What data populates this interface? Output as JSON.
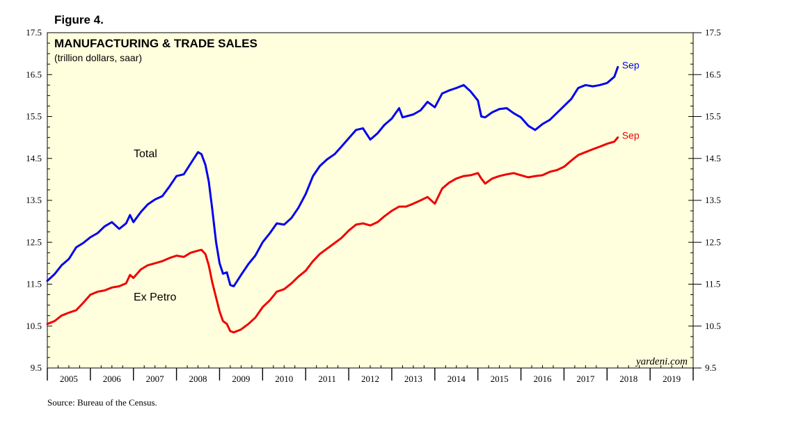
{
  "figure_label": "Figure 4.",
  "source": "Source: Bureau of the Census.",
  "watermark": "yardeni.com",
  "chart_data": {
    "type": "line",
    "title": "MANUFACTURING & TRADE SALES",
    "subtitle": "(trillion dollars, saar)",
    "xlim": [
      2005.0,
      2020.0
    ],
    "ylim": [
      9.5,
      17.5
    ],
    "y_ticks": [
      9.5,
      10.5,
      11.5,
      12.5,
      13.5,
      14.5,
      15.5,
      16.5,
      17.5
    ],
    "y_tick_labels": [
      "9.5",
      "10.5",
      "11.5",
      "12.5",
      "13.5",
      "14.5",
      "15.5",
      "16.5",
      "17.5"
    ],
    "x_labels": [
      "2005",
      "2006",
      "2007",
      "2008",
      "2009",
      "2010",
      "2011",
      "2012",
      "2013",
      "2014",
      "2015",
      "2016",
      "2017",
      "2018",
      "2019"
    ],
    "grid": false,
    "background": "#ffffdd",
    "series": [
      {
        "name": "Total",
        "color": "#0000ee",
        "end_label": "Sep",
        "points": [
          [
            2005.0,
            11.58
          ],
          [
            2005.17,
            11.74
          ],
          [
            2005.33,
            11.95
          ],
          [
            2005.5,
            12.1
          ],
          [
            2005.67,
            12.38
          ],
          [
            2005.83,
            12.48
          ],
          [
            2006.0,
            12.62
          ],
          [
            2006.17,
            12.72
          ],
          [
            2006.33,
            12.88
          ],
          [
            2006.5,
            12.98
          ],
          [
            2006.67,
            12.82
          ],
          [
            2006.83,
            12.95
          ],
          [
            2006.92,
            13.15
          ],
          [
            2007.0,
            12.98
          ],
          [
            2007.17,
            13.22
          ],
          [
            2007.33,
            13.4
          ],
          [
            2007.5,
            13.52
          ],
          [
            2007.67,
            13.6
          ],
          [
            2007.83,
            13.82
          ],
          [
            2008.0,
            14.08
          ],
          [
            2008.17,
            14.12
          ],
          [
            2008.33,
            14.38
          ],
          [
            2008.5,
            14.65
          ],
          [
            2008.58,
            14.6
          ],
          [
            2008.67,
            14.35
          ],
          [
            2008.75,
            13.95
          ],
          [
            2008.83,
            13.3
          ],
          [
            2008.92,
            12.5
          ],
          [
            2009.0,
            12.0
          ],
          [
            2009.08,
            11.75
          ],
          [
            2009.17,
            11.78
          ],
          [
            2009.25,
            11.48
          ],
          [
            2009.33,
            11.45
          ],
          [
            2009.5,
            11.72
          ],
          [
            2009.67,
            11.98
          ],
          [
            2009.83,
            12.18
          ],
          [
            2010.0,
            12.5
          ],
          [
            2010.17,
            12.72
          ],
          [
            2010.33,
            12.95
          ],
          [
            2010.5,
            12.92
          ],
          [
            2010.67,
            13.08
          ],
          [
            2010.83,
            13.32
          ],
          [
            2011.0,
            13.65
          ],
          [
            2011.17,
            14.08
          ],
          [
            2011.33,
            14.32
          ],
          [
            2011.5,
            14.48
          ],
          [
            2011.67,
            14.6
          ],
          [
            2011.83,
            14.78
          ],
          [
            2012.0,
            14.98
          ],
          [
            2012.17,
            15.18
          ],
          [
            2012.33,
            15.22
          ],
          [
            2012.5,
            14.95
          ],
          [
            2012.67,
            15.1
          ],
          [
            2012.83,
            15.3
          ],
          [
            2013.0,
            15.45
          ],
          [
            2013.17,
            15.7
          ],
          [
            2013.25,
            15.48
          ],
          [
            2013.5,
            15.55
          ],
          [
            2013.67,
            15.65
          ],
          [
            2013.83,
            15.85
          ],
          [
            2014.0,
            15.72
          ],
          [
            2014.17,
            16.05
          ],
          [
            2014.33,
            16.12
          ],
          [
            2014.5,
            16.18
          ],
          [
            2014.67,
            16.25
          ],
          [
            2014.83,
            16.1
          ],
          [
            2015.0,
            15.88
          ],
          [
            2015.08,
            15.5
          ],
          [
            2015.17,
            15.48
          ],
          [
            2015.33,
            15.6
          ],
          [
            2015.5,
            15.68
          ],
          [
            2015.67,
            15.7
          ],
          [
            2015.83,
            15.58
          ],
          [
            2016.0,
            15.48
          ],
          [
            2016.17,
            15.28
          ],
          [
            2016.33,
            15.18
          ],
          [
            2016.5,
            15.32
          ],
          [
            2016.67,
            15.42
          ],
          [
            2016.83,
            15.58
          ],
          [
            2017.0,
            15.75
          ],
          [
            2017.17,
            15.92
          ],
          [
            2017.33,
            16.18
          ],
          [
            2017.5,
            16.25
          ],
          [
            2017.67,
            16.22
          ],
          [
            2017.83,
            16.25
          ],
          [
            2018.0,
            16.3
          ],
          [
            2018.17,
            16.45
          ],
          [
            2018.25,
            16.68
          ]
        ]
      },
      {
        "name": "Ex Petro",
        "color": "#ee0000",
        "end_label": "Sep",
        "points": [
          [
            2005.0,
            10.55
          ],
          [
            2005.17,
            10.62
          ],
          [
            2005.33,
            10.75
          ],
          [
            2005.5,
            10.82
          ],
          [
            2005.67,
            10.88
          ],
          [
            2005.83,
            11.05
          ],
          [
            2006.0,
            11.25
          ],
          [
            2006.17,
            11.32
          ],
          [
            2006.33,
            11.35
          ],
          [
            2006.5,
            11.42
          ],
          [
            2006.67,
            11.45
          ],
          [
            2006.83,
            11.52
          ],
          [
            2006.92,
            11.72
          ],
          [
            2007.0,
            11.65
          ],
          [
            2007.17,
            11.85
          ],
          [
            2007.33,
            11.95
          ],
          [
            2007.5,
            12.0
          ],
          [
            2007.67,
            12.05
          ],
          [
            2007.83,
            12.12
          ],
          [
            2008.0,
            12.18
          ],
          [
            2008.17,
            12.15
          ],
          [
            2008.33,
            12.25
          ],
          [
            2008.5,
            12.3
          ],
          [
            2008.58,
            12.32
          ],
          [
            2008.67,
            12.22
          ],
          [
            2008.75,
            11.95
          ],
          [
            2008.83,
            11.55
          ],
          [
            2008.92,
            11.18
          ],
          [
            2009.0,
            10.85
          ],
          [
            2009.08,
            10.62
          ],
          [
            2009.17,
            10.55
          ],
          [
            2009.25,
            10.38
          ],
          [
            2009.33,
            10.35
          ],
          [
            2009.5,
            10.42
          ],
          [
            2009.67,
            10.55
          ],
          [
            2009.83,
            10.7
          ],
          [
            2010.0,
            10.95
          ],
          [
            2010.17,
            11.12
          ],
          [
            2010.33,
            11.32
          ],
          [
            2010.5,
            11.38
          ],
          [
            2010.67,
            11.52
          ],
          [
            2010.83,
            11.68
          ],
          [
            2011.0,
            11.82
          ],
          [
            2011.17,
            12.05
          ],
          [
            2011.33,
            12.22
          ],
          [
            2011.5,
            12.35
          ],
          [
            2011.67,
            12.48
          ],
          [
            2011.83,
            12.6
          ],
          [
            2012.0,
            12.78
          ],
          [
            2012.17,
            12.92
          ],
          [
            2012.33,
            12.95
          ],
          [
            2012.5,
            12.9
          ],
          [
            2012.67,
            12.98
          ],
          [
            2012.83,
            13.12
          ],
          [
            2013.0,
            13.25
          ],
          [
            2013.17,
            13.35
          ],
          [
            2013.33,
            13.35
          ],
          [
            2013.5,
            13.42
          ],
          [
            2013.67,
            13.5
          ],
          [
            2013.83,
            13.58
          ],
          [
            2014.0,
            13.42
          ],
          [
            2014.17,
            13.78
          ],
          [
            2014.33,
            13.92
          ],
          [
            2014.5,
            14.02
          ],
          [
            2014.67,
            14.08
          ],
          [
            2014.83,
            14.1
          ],
          [
            2015.0,
            14.15
          ],
          [
            2015.08,
            14.02
          ],
          [
            2015.17,
            13.9
          ],
          [
            2015.33,
            14.02
          ],
          [
            2015.5,
            14.08
          ],
          [
            2015.67,
            14.12
          ],
          [
            2015.83,
            14.15
          ],
          [
            2016.0,
            14.1
          ],
          [
            2016.17,
            14.05
          ],
          [
            2016.33,
            14.08
          ],
          [
            2016.5,
            14.1
          ],
          [
            2016.67,
            14.18
          ],
          [
            2016.83,
            14.22
          ],
          [
            2017.0,
            14.3
          ],
          [
            2017.17,
            14.45
          ],
          [
            2017.33,
            14.58
          ],
          [
            2017.5,
            14.65
          ],
          [
            2017.67,
            14.72
          ],
          [
            2017.83,
            14.78
          ],
          [
            2018.0,
            14.85
          ],
          [
            2018.17,
            14.9
          ],
          [
            2018.25,
            15.0
          ]
        ]
      }
    ],
    "annotations": [
      {
        "text": "Total",
        "series": "Total"
      },
      {
        "text": "Ex Petro",
        "series": "Ex Petro"
      }
    ]
  }
}
